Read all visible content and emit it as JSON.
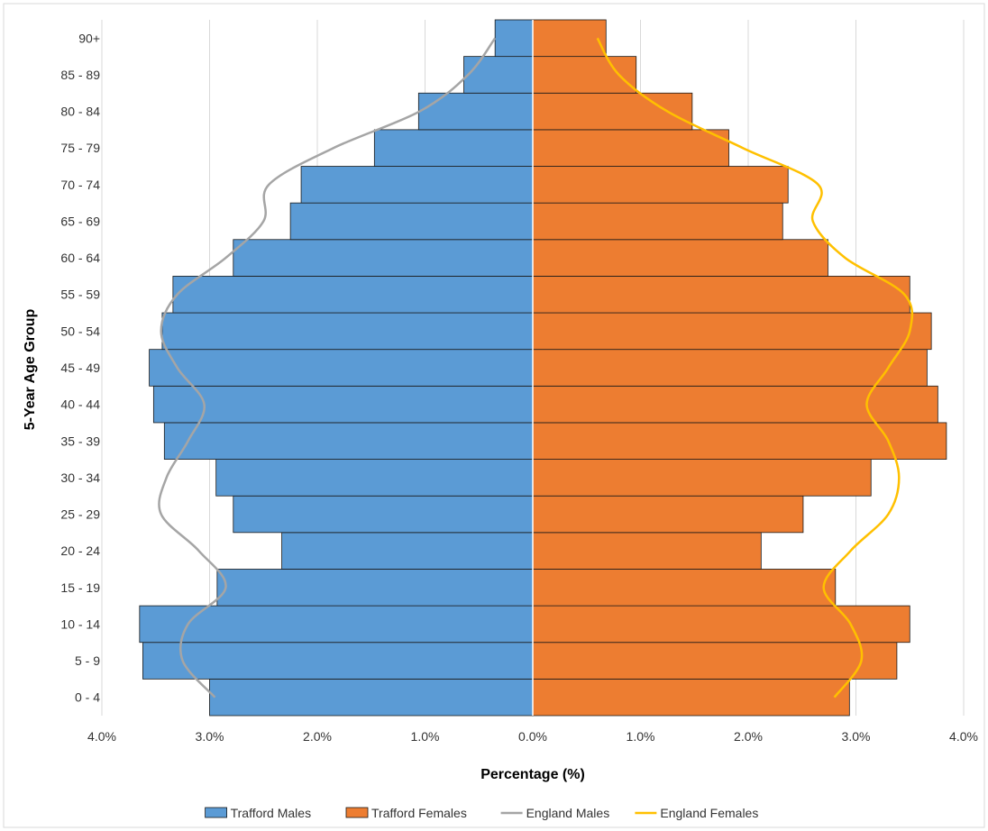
{
  "chart_data": {
    "type": "bar",
    "orientation": "horizontal-population-pyramid",
    "title": "",
    "xlabel": "Percentage (%)",
    "ylabel": "5-Year Age Group",
    "xlim": [
      -4,
      4
    ],
    "xticks": [
      -4,
      -3,
      -2,
      -1,
      0,
      1,
      2,
      3,
      4
    ],
    "xtick_labels": [
      "4.0%",
      "3.0%",
      "2.0%",
      "1.0%",
      "0.0%",
      "1.0%",
      "2.0%",
      "3.0%",
      "4.0%"
    ],
    "grid": "vertical",
    "legend_position": "bottom",
    "categories": [
      "0 - 4",
      "5 - 9",
      "10 - 14",
      "15 - 19",
      "20 - 24",
      "25 - 29",
      "30 - 34",
      "35 - 39",
      "40 - 44",
      "45 - 49",
      "50 - 54",
      "55 - 59",
      "60 - 64",
      "65 - 69",
      "70 - 74",
      "75 - 79",
      "80 - 84",
      "85 - 89",
      "90+"
    ],
    "series": [
      {
        "name": "Trafford Males",
        "kind": "bar",
        "side": "left",
        "color": "#5B9BD5",
        "values": [
          3.0,
          3.62,
          3.65,
          2.93,
          2.33,
          2.78,
          2.94,
          3.42,
          3.52,
          3.56,
          3.44,
          3.34,
          2.78,
          2.25,
          2.15,
          1.47,
          1.06,
          0.64,
          0.35
        ]
      },
      {
        "name": "Trafford Females",
        "kind": "bar",
        "side": "right",
        "color": "#ED7D31",
        "values": [
          2.94,
          3.38,
          3.5,
          2.81,
          2.12,
          2.51,
          3.14,
          3.84,
          3.76,
          3.66,
          3.7,
          3.5,
          2.74,
          2.32,
          2.37,
          1.82,
          1.48,
          0.96,
          0.68
        ]
      },
      {
        "name": "England Males",
        "kind": "line",
        "side": "left",
        "color": "#A5A5A5",
        "values": [
          2.95,
          3.25,
          3.2,
          2.85,
          3.1,
          3.45,
          3.4,
          3.2,
          3.05,
          3.3,
          3.45,
          3.3,
          2.85,
          2.5,
          2.45,
          1.85,
          1.05,
          0.6,
          0.35
        ]
      },
      {
        "name": "England Females",
        "kind": "line",
        "side": "right",
        "color": "#FFC000",
        "values": [
          2.8,
          3.05,
          2.95,
          2.7,
          2.95,
          3.3,
          3.4,
          3.3,
          3.1,
          3.3,
          3.5,
          3.45,
          2.9,
          2.6,
          2.65,
          1.95,
          1.25,
          0.8,
          0.6
        ]
      }
    ]
  }
}
